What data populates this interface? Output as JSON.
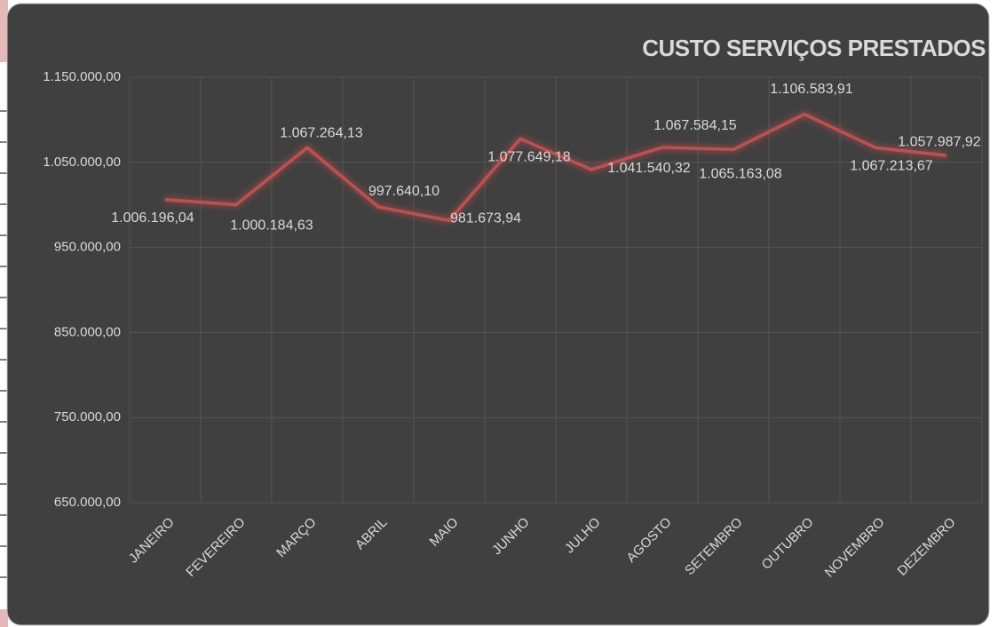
{
  "chart_data": {
    "type": "line",
    "title": "CUSTO SERVIÇOS PRESTADOS",
    "categories": [
      "JANEIRO",
      "FEVEREIRO",
      "MARÇO",
      "ABRIL",
      "MAIO",
      "JUNHO",
      "JULHO",
      "AGOSTO",
      "SETEMBRO",
      "OUTUBRO",
      "NOVEMBRO",
      "DEZEMBRO"
    ],
    "series": [
      {
        "name": "CUSTO SERVIÇOS PRESTADOS",
        "color": "#c0504d",
        "values": [
          1006196.04,
          1000184.63,
          1067264.13,
          997640.1,
          981673.94,
          1077649.18,
          1041540.32,
          1067584.15,
          1065163.08,
          1106583.91,
          1067213.67,
          1057987.92
        ],
        "value_labels": [
          "1.006.196,04",
          "1.000.184,63",
          "1.067.264,13",
          "997.640,10",
          "981.673,94",
          "1.077.649,18",
          "1.041.540,32",
          "1.067.584,15",
          "1.065.163,08",
          "1.106.583,91",
          "1.067.213,67",
          "1.057.987,92"
        ]
      }
    ],
    "ylim": [
      650000,
      1150000
    ],
    "yticks": [
      {
        "value": 650000,
        "label": "650.000,00"
      },
      {
        "value": 750000,
        "label": "750.000,00"
      },
      {
        "value": 850000,
        "label": "850.000,00"
      },
      {
        "value": 950000,
        "label": "950.000,00"
      },
      {
        "value": 1050000,
        "label": "1.050.000,00"
      },
      {
        "value": 1150000,
        "label": "1.150.000,00"
      }
    ],
    "grid": true
  }
}
